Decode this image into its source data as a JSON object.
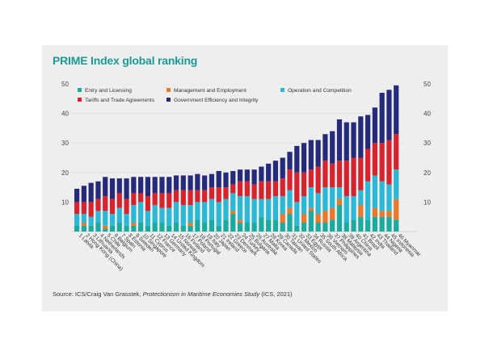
{
  "title": "PRIME Index global ranking",
  "source": {
    "prefix": "Source: ICS/Craig Van Grasstek, ",
    "study": "Protectionism in Maritime Economies Study",
    "suffix": " (ICS, 2021)"
  },
  "colors": {
    "entry": "#1aaa9f",
    "management": "#e9782a",
    "operation": "#2ab8d6",
    "tariffs": "#d6232e",
    "government": "#252b7a",
    "axis_text": "#444444",
    "title": "#1a9a95"
  },
  "chart_data": {
    "type": "bar",
    "stacked": true,
    "title": "PRIME Index global ranking",
    "ylim": [
      0,
      50
    ],
    "yticks": [
      10,
      20,
      30,
      40,
      50
    ],
    "legend_position": "top-left",
    "categories": [
      "1 Latvia",
      "2 Hong Kong (China)",
      "3 Lithuania",
      "4 Netherlands",
      "5 Chile",
      "6 Belgium",
      "7 Spain",
      "8 Estonia",
      "9 Sweden",
      "10 Singapore",
      "11 Cyprus",
      "12 France",
      "13 Germany",
      "14 United Kingdom",
      "15 Norway",
      "16 Finland",
      "17 Poland",
      "18 Portugal",
      "19 Italy",
      "20 Japan",
      "21 Ireland",
      "22 Greece",
      "23 Denmark",
      "24 Turkey",
      "25 Bulgaria",
      "26 Australia",
      "27 Malta",
      "28 Korea",
      "29 Canada",
      "30 Taiwan",
      "31 United States",
      "32 Mexico",
      "33 Egypt",
      "34 Russia",
      "35 South Africa",
      "36 Vietnam",
      "37 Philippines",
      "38 Malaysia",
      "39 Argentina",
      "40 China",
      "41 Brazil",
      "42 India",
      "43 Thailand",
      "44 Nigeria",
      "45 Indonesia",
      "46 Myanmar"
    ],
    "tick_labels": [
      {
        "num": "1",
        "name": "Latvia"
      },
      {
        "num": "2",
        "name": "Hong Kong (China)"
      },
      {
        "num": "3",
        "name": "Lithuania"
      },
      {
        "num": "4",
        "name": "Netherlands"
      },
      {
        "num": "5",
        "name": "Chile"
      },
      {
        "num": "6",
        "name": "Belgium"
      },
      {
        "num": "7",
        "name": "Spain"
      },
      {
        "num": "8",
        "name": "Estonia"
      },
      {
        "num": "9",
        "name": "Sweden"
      },
      {
        "num": "10",
        "name": "Singapore"
      },
      {
        "num": "11",
        "name": "Cyprus"
      },
      {
        "num": "12",
        "name": "France"
      },
      {
        "num": "13",
        "name": "Germany"
      },
      {
        "num": "14",
        "name": "United Kingdom"
      },
      {
        "num": "15",
        "name": "Norway"
      },
      {
        "num": "16",
        "name": "Finland"
      },
      {
        "num": "17",
        "name": "Poland"
      },
      {
        "num": "18",
        "name": "Portugal"
      },
      {
        "num": "19",
        "name": "Italy"
      },
      {
        "num": "20",
        "name": "Japan"
      },
      {
        "num": "21",
        "name": "Ireland"
      },
      {
        "num": "22",
        "name": "Greece"
      },
      {
        "num": "23",
        "name": "Denmark"
      },
      {
        "num": "24",
        "name": "Turkey"
      },
      {
        "num": "25",
        "name": "Bulgaria"
      },
      {
        "num": "26",
        "name": "Australia"
      },
      {
        "num": "27",
        "name": "Malta"
      },
      {
        "num": "28",
        "name": "Korea"
      },
      {
        "num": "29",
        "name": "Canada"
      },
      {
        "num": "30",
        "name": "Taiwan"
      },
      {
        "num": "31",
        "name": "United States"
      },
      {
        "num": "32",
        "name": "Mexico"
      },
      {
        "num": "33",
        "name": "Egypt"
      },
      {
        "num": "34",
        "name": "Russia"
      },
      {
        "num": "35",
        "name": "South Africa"
      },
      {
        "num": "36",
        "name": "Vietnam"
      },
      {
        "num": "37",
        "name": "Philippines"
      },
      {
        "num": "38",
        "name": "Malaysia"
      },
      {
        "num": "39",
        "name": "Argentina"
      },
      {
        "num": "40",
        "name": "China"
      },
      {
        "num": "41",
        "name": "Brazil"
      },
      {
        "num": "42",
        "name": "India"
      },
      {
        "num": "43",
        "name": "Thailand"
      },
      {
        "num": "44",
        "name": "Nigeria"
      },
      {
        "num": "45",
        "name": "Indonesia"
      },
      {
        "num": "46",
        "name": "Myanmar"
      }
    ],
    "series": [
      {
        "name": "Entry and Licensing",
        "key": "entry",
        "values": [
          2,
          2,
          2,
          3,
          1,
          2,
          3,
          2,
          2,
          3,
          2,
          3,
          3,
          2,
          3,
          2,
          2,
          4,
          3,
          4,
          2,
          4,
          6,
          3,
          3,
          3,
          5,
          4,
          4,
          3,
          6,
          2,
          3,
          7,
          3,
          3,
          4,
          9,
          3,
          4,
          5,
          4,
          5,
          5,
          5,
          4
        ]
      },
      {
        "name": "Management and Employment",
        "key": "management",
        "values": [
          0,
          1,
          0,
          0,
          1,
          0,
          0,
          0,
          1,
          0,
          0,
          0,
          0,
          0,
          0,
          0,
          1,
          0,
          0,
          0,
          0,
          0,
          1,
          1,
          0,
          0,
          0,
          0,
          0,
          3,
          2,
          0,
          3,
          1,
          3,
          4,
          4,
          2,
          0,
          0,
          4,
          0,
          3,
          2,
          2,
          7
        ]
      },
      {
        "name": "Operation and Competition",
        "key": "operation",
        "values": [
          4,
          3,
          3,
          4,
          5,
          4,
          5,
          4,
          6,
          7,
          5,
          6,
          5,
          6,
          7,
          7,
          6,
          6,
          7,
          7,
          8,
          7,
          6,
          8,
          9,
          8,
          6,
          7,
          8,
          6,
          6,
          8,
          6,
          7,
          7,
          8,
          7,
          4,
          9,
          8,
          5,
          13,
          11,
          10,
          9,
          10
        ]
      },
      {
        "name": "Tariffs and Trade Agreements",
        "key": "tariffs",
        "values": [
          4,
          4,
          5,
          4,
          5,
          5,
          5,
          5,
          4,
          3,
          5,
          4,
          5,
          5,
          4,
          5,
          5,
          4,
          4,
          4,
          5,
          4,
          3,
          5,
          5,
          5,
          6,
          6,
          5,
          6,
          7,
          10,
          8,
          6,
          9,
          9,
          8,
          9,
          12,
          13,
          11,
          11,
          11,
          13,
          15,
          12
        ]
      },
      {
        "name": "Government Efficiency and Integrity",
        "key": "government",
        "values": [
          4.5,
          5.5,
          6.5,
          6,
          6.5,
          7,
          5,
          7,
          5.5,
          5.5,
          6.5,
          5.5,
          5.5,
          5.5,
          5,
          5,
          5,
          5.5,
          5,
          4.5,
          5.5,
          5,
          4.5,
          4,
          4,
          5,
          5,
          6,
          7,
          7,
          6,
          9,
          10,
          10,
          9,
          9,
          11,
          14,
          13,
          12,
          14,
          11.5,
          12,
          17,
          17,
          16.5
        ]
      }
    ]
  }
}
